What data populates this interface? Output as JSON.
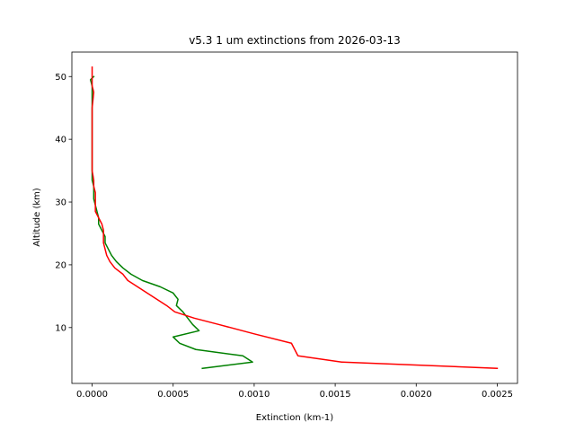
{
  "chart_data": {
    "type": "line",
    "title": "v5.3 1 um extinctions from 2026-03-13",
    "xlabel": "Extinction (km-1)",
    "ylabel": "Altitude (km)",
    "xlim": [
      -0.000125,
      0.002625
    ],
    "ylim": [
      1.1,
      53.9
    ],
    "xticks": [
      0.0,
      0.0005,
      0.001,
      0.0015,
      0.002,
      0.0025
    ],
    "xtick_labels": [
      "0.0000",
      "0.0005",
      "0.0010",
      "0.0015",
      "0.0020",
      "0.0025"
    ],
    "yticks": [
      10,
      20,
      30,
      40,
      50
    ],
    "ytick_labels": [
      "10",
      "20",
      "30",
      "40",
      "50"
    ],
    "grid": false,
    "series": [
      {
        "color": "#008000",
        "points": [
          [
            0.00068,
            3.5
          ],
          [
            0.00099,
            4.5
          ],
          [
            0.00093,
            5.5
          ],
          [
            0.00064,
            6.5
          ],
          [
            0.00054,
            7.5
          ],
          [
            0.0005,
            8.5
          ],
          [
            0.00066,
            9.5
          ],
          [
            0.00062,
            10.5
          ],
          [
            0.00059,
            11.5
          ],
          [
            0.00056,
            12.5
          ],
          [
            0.00052,
            13.5
          ],
          [
            0.00053,
            14.5
          ],
          [
            0.0005,
            15.5
          ],
          [
            0.00042,
            16.5
          ],
          [
            0.00031,
            17.5
          ],
          [
            0.00024,
            18.5
          ],
          [
            0.00019,
            19.5
          ],
          [
            0.00015,
            20.5
          ],
          [
            0.00012,
            21.5
          ],
          [
            0.0001,
            22.5
          ],
          [
            8e-05,
            23.5
          ],
          [
            8e-05,
            24.5
          ],
          [
            6e-05,
            25.5
          ],
          [
            4e-05,
            26.5
          ],
          [
            4e-05,
            27.5
          ],
          [
            3e-05,
            28.5
          ],
          [
            2e-05,
            29.5
          ],
          [
            1e-05,
            30.5
          ],
          [
            1e-05,
            31.5
          ],
          [
            1e-05,
            32.5
          ],
          [
            0.0,
            33.5
          ],
          [
            0.0,
            35.0
          ],
          [
            0.0,
            40.0
          ],
          [
            0.0,
            45.0
          ],
          [
            0.0,
            48.5
          ],
          [
            -1e-05,
            49.5
          ],
          [
            1e-05,
            50.0
          ]
        ]
      },
      {
        "color": "#ff0000",
        "points": [
          [
            0.0025,
            3.5
          ],
          [
            0.00154,
            4.5
          ],
          [
            0.00127,
            5.5
          ],
          [
            0.00123,
            7.5
          ],
          [
            0.001,
            9.0
          ],
          [
            0.00078,
            10.5
          ],
          [
            0.00063,
            11.5
          ],
          [
            0.00051,
            12.5
          ],
          [
            0.00046,
            13.5
          ],
          [
            0.0004,
            14.5
          ],
          [
            0.00034,
            15.5
          ],
          [
            0.00028,
            16.5
          ],
          [
            0.00022,
            17.5
          ],
          [
            0.00019,
            18.5
          ],
          [
            0.00014,
            19.5
          ],
          [
            0.00011,
            20.5
          ],
          [
            9e-05,
            21.5
          ],
          [
            8e-05,
            22.5
          ],
          [
            7e-05,
            23.5
          ],
          [
            7e-05,
            24.5
          ],
          [
            7e-05,
            25.5
          ],
          [
            6e-05,
            26.5
          ],
          [
            4e-05,
            27.5
          ],
          [
            2e-05,
            28.5
          ],
          [
            2e-05,
            29.5
          ],
          [
            2e-05,
            30.5
          ],
          [
            2e-05,
            31.5
          ],
          [
            1e-05,
            32.5
          ],
          [
            1e-05,
            33.5
          ],
          [
            0.0,
            35.0
          ],
          [
            0.0,
            40.0
          ],
          [
            0.0,
            45.0
          ],
          [
            1e-05,
            47.5
          ],
          [
            0.0,
            48.5
          ],
          [
            0.0,
            49.5
          ],
          [
            0.0,
            51.5
          ]
        ]
      }
    ]
  }
}
